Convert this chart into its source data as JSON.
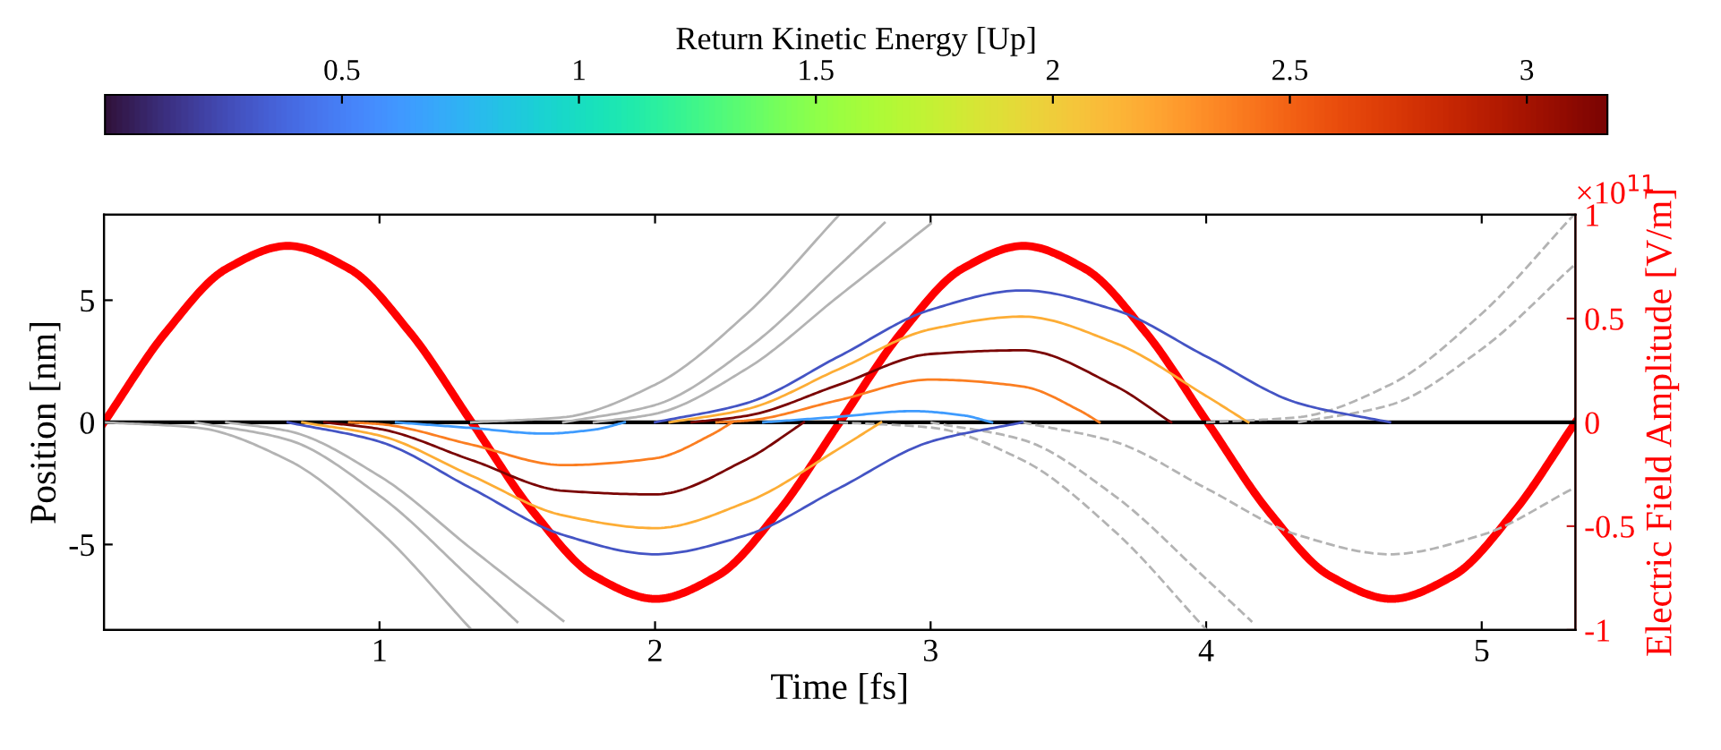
{
  "chart_data": {
    "type": "line",
    "xlabel": "Time [fs]",
    "ylabel": "Position [nm]",
    "y2label": "Electric Field Amplitude [V/m]",
    "clabel": "Return Kinetic Energy [Up]",
    "annotations": [
      "×10$^{11}$"
    ],
    "xlim": [
      0,
      5.34
    ],
    "xticks": [
      1,
      2,
      3,
      4,
      5
    ],
    "ylim": [
      -8.5,
      8.5
    ],
    "yticks": [
      -5,
      0,
      5
    ],
    "y2lim": [
      -1,
      1
    ],
    "y2ticks": [
      -1,
      -0.5,
      0,
      0.5,
      1
    ],
    "clim": [
      0,
      3.17
    ],
    "cticks": [
      0.5,
      1,
      1.5,
      2,
      2.5,
      3
    ],
    "grid": false,
    "marker": "none",
    "ref_lines": [
      {
        "axis": "y",
        "value": 0,
        "color": "#000000"
      }
    ],
    "series": [
      {
        "color": "#b3b3b3",
        "line_style": "solid",
        "x": [
          0,
          0.333,
          0.667,
          1.0,
          1.333
        ],
        "values": [
          0,
          -0.21,
          -1.54,
          -4.45,
          -8.48
        ]
      },
      {
        "color": "#b3b3b3",
        "line_style": "solid",
        "x": [
          0.333,
          0.667,
          1.0,
          1.333,
          1.5
        ],
        "values": [
          0,
          -0.71,
          -3.0,
          -6.41,
          -8.17
        ]
      },
      {
        "color": "#b3b3b3",
        "line_style": "solid",
        "x": [
          0.444,
          0.667,
          1.0,
          1.333,
          1.667
        ],
        "values": [
          0,
          -0.35,
          -2.2,
          -5.17,
          -8.13
        ]
      },
      {
        "color": "#b3b3b3",
        "line_style": "solid",
        "x": [
          1.333,
          1.667,
          2.0,
          2.333,
          2.667
        ],
        "values": [
          0,
          0.21,
          1.54,
          4.45,
          8.48
        ]
      },
      {
        "color": "#b3b3b3",
        "line_style": "solid",
        "x": [
          1.667,
          2.0,
          2.333,
          2.667,
          2.833
        ],
        "values": [
          0,
          0.71,
          3.0,
          6.41,
          8.17
        ]
      },
      {
        "color": "#b3b3b3",
        "line_style": "solid",
        "x": [
          1.778,
          2.0,
          2.333,
          2.667,
          3.0
        ],
        "values": [
          0,
          0.35,
          2.2,
          5.17,
          8.13
        ]
      },
      {
        "color": "#b3b3b3",
        "line_style": "dashed",
        "x": [
          2.667,
          3.0,
          3.333,
          3.667,
          4.0
        ],
        "values": [
          0,
          -0.21,
          -1.54,
          -4.45,
          -8.48
        ]
      },
      {
        "color": "#b3b3b3",
        "line_style": "dashed",
        "x": [
          3.0,
          3.333,
          3.667,
          4.0,
          4.167
        ],
        "values": [
          0,
          -0.71,
          -3.0,
          -6.41,
          -8.17
        ]
      },
      {
        "color": "#b3b3b3",
        "line_style": "dashed",
        "x": [
          3.333,
          3.667,
          4.0,
          4.333,
          4.667,
          5.0,
          5.333
        ],
        "values": [
          0,
          -0.79,
          -2.7,
          -4.61,
          -5.4,
          -4.61,
          -2.7
        ]
      },
      {
        "color": "#b3b3b3",
        "line_style": "dashed",
        "x": [
          4.0,
          4.333,
          4.667,
          5.0,
          5.333
        ],
        "values": [
          0,
          0.21,
          1.54,
          4.45,
          8.48
        ]
      },
      {
        "color": "#b3b3b3",
        "line_style": "dashed",
        "x": [
          4.333,
          4.667,
          5.0,
          5.333
        ],
        "values": [
          0,
          0.71,
          3.0,
          6.41
        ]
      },
      {
        "color": "#4454c4",
        "line_style": "solid",
        "x": [
          0.667,
          1.0,
          1.333,
          1.667,
          2.0,
          2.333,
          2.667,
          3.0,
          3.333
        ],
        "values": [
          0,
          -0.79,
          -2.7,
          -4.61,
          -5.4,
          -4.61,
          -2.7,
          -0.79,
          0
        ]
      },
      {
        "color": "#fdad35",
        "line_style": "solid",
        "x": [
          0.72,
          1.0,
          1.333,
          1.667,
          2.0,
          2.333,
          2.667,
          2.82
        ],
        "values": [
          0,
          -0.54,
          -2.18,
          -3.81,
          -4.33,
          -3.26,
          -1.08,
          0
        ]
      },
      {
        "color": "#7a0403",
        "line_style": "solid",
        "x": [
          0.8,
          1.0,
          1.333,
          1.667,
          2.0,
          2.333,
          2.54
        ],
        "values": [
          0,
          -0.27,
          -1.54,
          -2.8,
          -2.95,
          -1.51,
          0
        ]
      },
      {
        "color": "#fb7e21",
        "line_style": "solid",
        "x": [
          0.89,
          1.0,
          1.333,
          1.667,
          2.0,
          2.207,
          2.28
        ],
        "values": [
          0,
          -0.07,
          -0.91,
          -1.75,
          -1.47,
          -0.49,
          0
        ]
      },
      {
        "color": "#3e9bfe",
        "line_style": "solid",
        "x": [
          1.06,
          1.333,
          1.6,
          1.783,
          1.89
        ],
        "values": [
          0,
          -0.23,
          -0.46,
          -0.29,
          0
        ]
      },
      {
        "color": "#4454c4",
        "line_style": "solid",
        "x": [
          2.0,
          2.333,
          2.667,
          3.0,
          3.333,
          3.667,
          4.0,
          4.333,
          4.667
        ],
        "values": [
          0,
          0.79,
          2.7,
          4.61,
          5.4,
          4.61,
          2.7,
          0.79,
          0
        ]
      },
      {
        "color": "#fdad35",
        "line_style": "solid",
        "x": [
          2.053,
          2.333,
          2.667,
          3.0,
          3.333,
          3.667,
          4.0,
          4.153
        ],
        "values": [
          0,
          0.54,
          2.18,
          3.81,
          4.33,
          3.26,
          1.08,
          0
        ]
      },
      {
        "color": "#7a0403",
        "line_style": "solid",
        "x": [
          2.133,
          2.333,
          2.667,
          3.0,
          3.333,
          3.667,
          3.873
        ],
        "values": [
          0,
          0.27,
          1.54,
          2.8,
          2.95,
          1.51,
          0
        ]
      },
      {
        "color": "#fb7e21",
        "line_style": "solid",
        "x": [
          2.223,
          2.333,
          2.667,
          3.0,
          3.333,
          3.54,
          3.613
        ],
        "values": [
          0,
          0.07,
          0.91,
          1.75,
          1.47,
          0.49,
          0
        ]
      },
      {
        "color": "#3e9bfe",
        "line_style": "solid",
        "x": [
          2.393,
          2.667,
          2.933,
          3.117,
          3.223
        ],
        "values": [
          0,
          0.23,
          0.46,
          0.29,
          0
        ]
      },
      {
        "color": "#ff0000",
        "line_style": "solid",
        "axis": "y2",
        "x": [
          0,
          0.2225,
          0.445,
          0.6675,
          0.89,
          1.1125,
          1.335,
          1.5575,
          1.78,
          2.0025,
          2.225,
          2.4475,
          2.67,
          2.8925,
          3.115,
          3.3375,
          3.56,
          3.7825,
          4.005,
          4.2275,
          4.45,
          4.6725,
          4.895,
          5.1175,
          5.34
        ],
        "values": [
          0,
          0.43,
          0.74,
          0.85,
          0.74,
          0.43,
          0,
          -0.43,
          -0.74,
          -0.85,
          -0.74,
          -0.43,
          0,
          0.43,
          0.74,
          0.85,
          0.74,
          0.43,
          0,
          -0.43,
          -0.74,
          -0.85,
          -0.74,
          -0.43,
          0
        ]
      }
    ]
  }
}
